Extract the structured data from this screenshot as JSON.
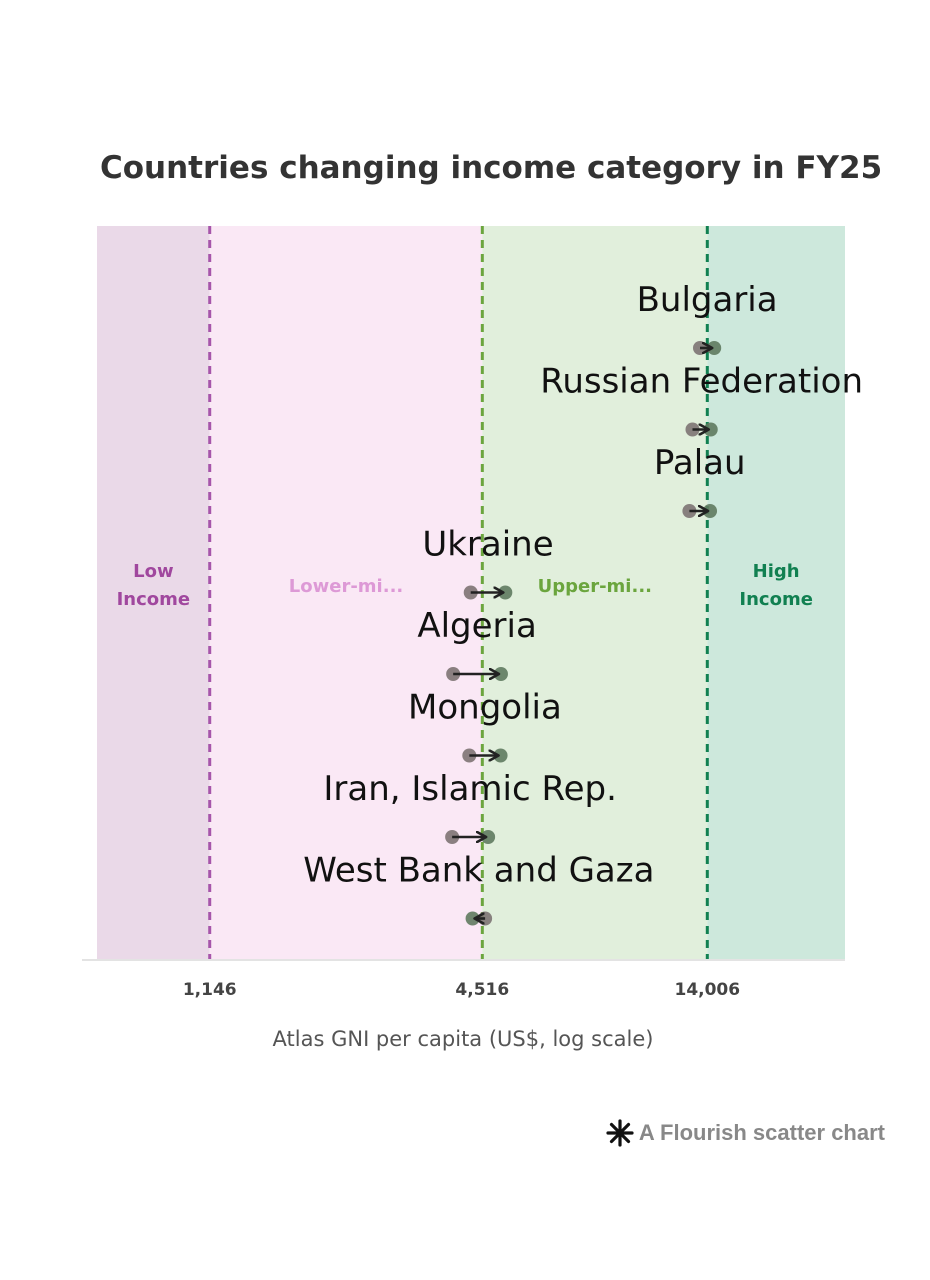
{
  "chart_data": {
    "type": "scatter",
    "title": "Countries changing income category in FY25",
    "xlabel": "Atlas GNI per capita (US$, log scale)",
    "x_scale": "log",
    "xlim": [
      650,
      28000
    ],
    "x_ticks": [
      {
        "value": 1146,
        "label": "1,146"
      },
      {
        "value": 4516,
        "label": "4,516"
      },
      {
        "value": 14006,
        "label": "14,006"
      }
    ],
    "bands": [
      {
        "label": "Low Income",
        "from": 650,
        "to": 1146,
        "bg": "#ead9e8",
        "color": "#a0479e",
        "line": "#a655aa"
      },
      {
        "label": "Lower-mi...",
        "from": 1146,
        "to": 4516,
        "bg": "#fae8f5",
        "color": "#dd99d6",
        "line": "#6ba53e"
      },
      {
        "label": "Upper-mi...",
        "from": 4516,
        "to": 14006,
        "bg": "#e1efdc",
        "color": "#6ba53e",
        "line": "#118051"
      },
      {
        "label": "High Income",
        "from": 14006,
        "to": 28000,
        "bg": "#cde8dc",
        "color": "#118051",
        "line": null
      }
    ],
    "series": [
      {
        "country": "Bulgaria",
        "from": 13500,
        "to": 14500
      },
      {
        "country": "Russian Federation",
        "from": 13000,
        "to": 14250
      },
      {
        "country": "Palau",
        "from": 12800,
        "to": 14200
      },
      {
        "country": "Ukraine",
        "from": 4260,
        "to": 5070
      },
      {
        "country": "Algeria",
        "from": 3900,
        "to": 4960
      },
      {
        "country": "Mongolia",
        "from": 4230,
        "to": 4950
      },
      {
        "country": "Iran, Islamic Rep.",
        "from": 3880,
        "to": 4650
      },
      {
        "country": "West Bank and Gaza",
        "from": 4580,
        "to": 4300
      }
    ],
    "grid": false,
    "legend": "none"
  },
  "credit": {
    "text": "A Flourish scatter chart",
    "icon": "flourish-asterisk-icon"
  }
}
